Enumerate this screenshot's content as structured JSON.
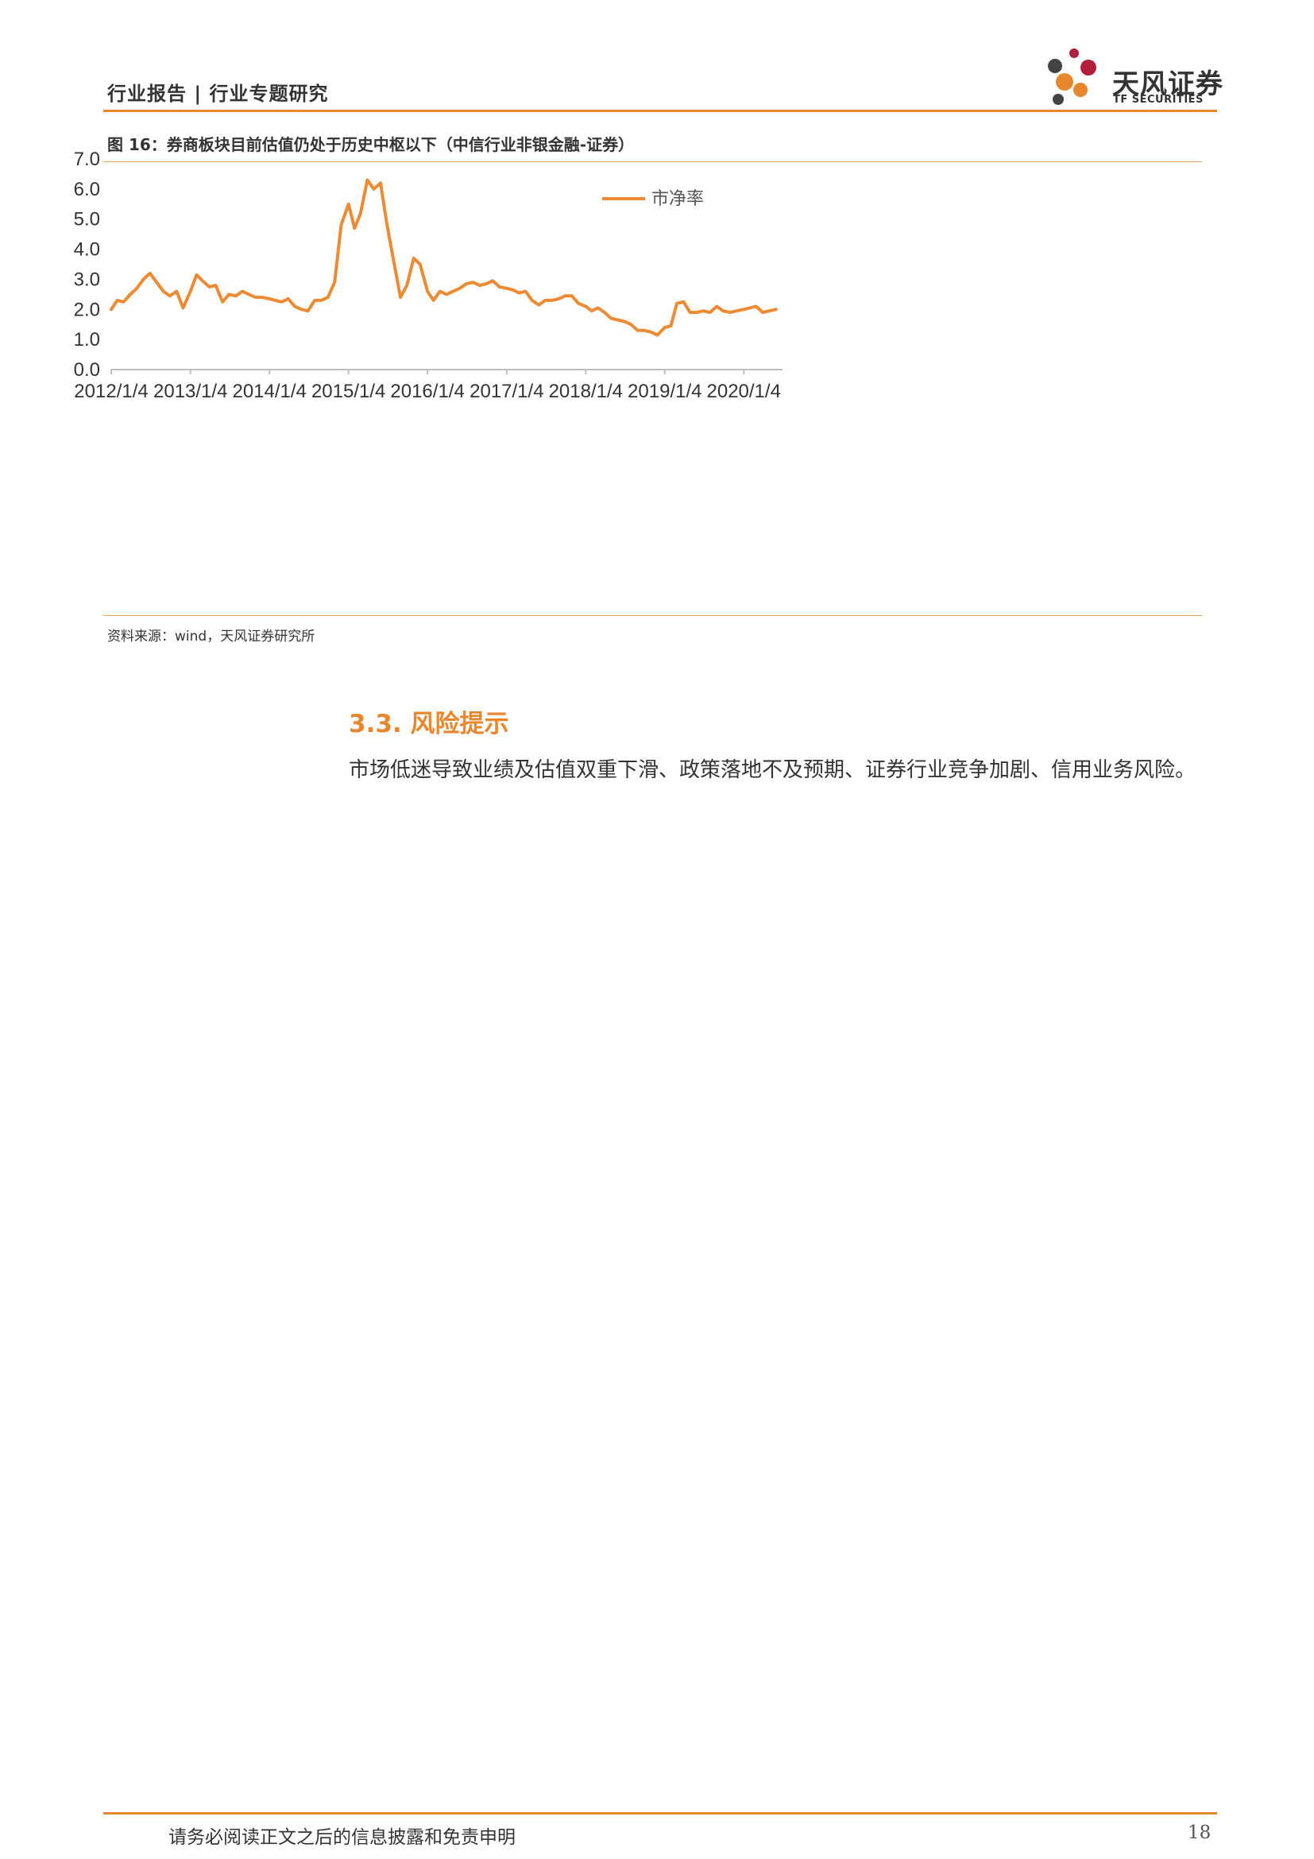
{
  "header": {
    "title": "行业报告 | 行业专题研究"
  },
  "logo": {
    "name": "天风证券",
    "sub": "TF SECURITIES"
  },
  "figure": {
    "caption": "图 16：券商板块目前估值仍处于历史中枢以下（中信行业非银金融-证券）",
    "source": "资料来源：wind，天风证券研究所"
  },
  "chart_data": {
    "type": "line",
    "title": "",
    "xlabel": "",
    "ylabel": "",
    "legend": {
      "position": "top-center"
    },
    "grid": false,
    "ylim": [
      0,
      7
    ],
    "yticks": [
      "0.0",
      "1.0",
      "2.0",
      "3.0",
      "4.0",
      "5.0",
      "6.0",
      "7.0"
    ],
    "xticks": [
      "2012/1/4",
      "2013/1/4",
      "2014/1/4",
      "2015/1/4",
      "2016/1/4",
      "2017/1/4",
      "2018/1/4",
      "2019/1/4",
      "2020/1/4"
    ],
    "series": [
      {
        "name": "市净率",
        "color": "#ed8a34",
        "points": [
          [
            "2012-01-04",
            2.0
          ],
          [
            "2012-02-01",
            2.3
          ],
          [
            "2012-03-01",
            2.25
          ],
          [
            "2012-04-01",
            2.5
          ],
          [
            "2012-05-01",
            2.7
          ],
          [
            "2012-06-01",
            3.0
          ],
          [
            "2012-07-01",
            3.2
          ],
          [
            "2012-08-01",
            2.9
          ],
          [
            "2012-09-01",
            2.6
          ],
          [
            "2012-10-01",
            2.45
          ],
          [
            "2012-11-01",
            2.6
          ],
          [
            "2012-12-01",
            2.05
          ],
          [
            "2013-01-04",
            2.6
          ],
          [
            "2013-02-01",
            3.15
          ],
          [
            "2013-03-01",
            2.95
          ],
          [
            "2013-04-01",
            2.75
          ],
          [
            "2013-05-01",
            2.8
          ],
          [
            "2013-06-01",
            2.25
          ],
          [
            "2013-07-01",
            2.5
          ],
          [
            "2013-08-01",
            2.45
          ],
          [
            "2013-09-01",
            2.6
          ],
          [
            "2013-10-01",
            2.5
          ],
          [
            "2013-11-01",
            2.4
          ],
          [
            "2013-12-01",
            2.4
          ],
          [
            "2014-01-04",
            2.35
          ],
          [
            "2014-02-01",
            2.3
          ],
          [
            "2014-03-01",
            2.25
          ],
          [
            "2014-04-01",
            2.35
          ],
          [
            "2014-05-01",
            2.1
          ],
          [
            "2014-06-01",
            2.0
          ],
          [
            "2014-07-01",
            1.95
          ],
          [
            "2014-08-01",
            2.3
          ],
          [
            "2014-09-01",
            2.3
          ],
          [
            "2014-10-01",
            2.4
          ],
          [
            "2014-11-01",
            2.9
          ],
          [
            "2014-12-01",
            4.8
          ],
          [
            "2015-01-04",
            5.5
          ],
          [
            "2015-02-01",
            4.7
          ],
          [
            "2015-03-01",
            5.2
          ],
          [
            "2015-04-01",
            6.3
          ],
          [
            "2015-05-01",
            6.0
          ],
          [
            "2015-06-01",
            6.2
          ],
          [
            "2015-07-01",
            4.8
          ],
          [
            "2015-08-01",
            3.6
          ],
          [
            "2015-09-01",
            2.4
          ],
          [
            "2015-10-01",
            2.8
          ],
          [
            "2015-11-01",
            3.7
          ],
          [
            "2015-12-01",
            3.5
          ],
          [
            "2016-01-04",
            2.6
          ],
          [
            "2016-02-01",
            2.3
          ],
          [
            "2016-03-01",
            2.6
          ],
          [
            "2016-04-01",
            2.5
          ],
          [
            "2016-05-01",
            2.6
          ],
          [
            "2016-06-01",
            2.7
          ],
          [
            "2016-07-01",
            2.85
          ],
          [
            "2016-08-01",
            2.9
          ],
          [
            "2016-09-01",
            2.8
          ],
          [
            "2016-10-01",
            2.85
          ],
          [
            "2016-11-01",
            2.95
          ],
          [
            "2016-12-01",
            2.75
          ],
          [
            "2017-01-04",
            2.7
          ],
          [
            "2017-02-01",
            2.65
          ],
          [
            "2017-03-01",
            2.55
          ],
          [
            "2017-04-01",
            2.6
          ],
          [
            "2017-05-01",
            2.3
          ],
          [
            "2017-06-01",
            2.15
          ],
          [
            "2017-07-01",
            2.3
          ],
          [
            "2017-08-01",
            2.3
          ],
          [
            "2017-09-01",
            2.35
          ],
          [
            "2017-10-01",
            2.45
          ],
          [
            "2017-11-01",
            2.45
          ],
          [
            "2017-12-01",
            2.2
          ],
          [
            "2018-01-04",
            2.1
          ],
          [
            "2018-02-01",
            1.95
          ],
          [
            "2018-03-01",
            2.05
          ],
          [
            "2018-04-01",
            1.9
          ],
          [
            "2018-05-01",
            1.7
          ],
          [
            "2018-06-01",
            1.65
          ],
          [
            "2018-07-01",
            1.6
          ],
          [
            "2018-08-01",
            1.5
          ],
          [
            "2018-09-01",
            1.3
          ],
          [
            "2018-10-01",
            1.3
          ],
          [
            "2018-11-01",
            1.25
          ],
          [
            "2018-12-01",
            1.15
          ],
          [
            "2019-01-04",
            1.4
          ],
          [
            "2019-02-01",
            1.45
          ],
          [
            "2019-03-01",
            2.2
          ],
          [
            "2019-04-01",
            2.25
          ],
          [
            "2019-05-01",
            1.9
          ],
          [
            "2019-06-01",
            1.9
          ],
          [
            "2019-07-01",
            1.95
          ],
          [
            "2019-08-01",
            1.9
          ],
          [
            "2019-09-01",
            2.1
          ],
          [
            "2019-10-01",
            1.95
          ],
          [
            "2019-11-01",
            1.9
          ],
          [
            "2019-12-01",
            1.95
          ],
          [
            "2020-01-04",
            2.0
          ],
          [
            "2020-02-01",
            2.05
          ],
          [
            "2020-03-01",
            2.1
          ],
          [
            "2020-04-01",
            1.9
          ],
          [
            "2020-05-01",
            1.95
          ],
          [
            "2020-06-01",
            2.0
          ]
        ]
      }
    ]
  },
  "section": {
    "heading": "3.3. 风险提示",
    "body": "市场低迷导致业绩及估值双重下滑、政策落地不及预期、证券行业竞争加剧、信用业务风险。"
  },
  "footer": {
    "note": "请务必阅读正文之后的信息披露和免责申明",
    "page_number": "18"
  }
}
